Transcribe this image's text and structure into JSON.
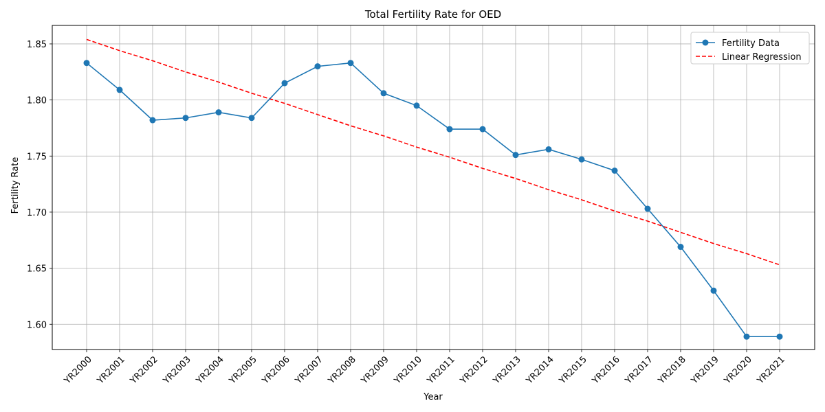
{
  "chart_data": {
    "type": "line",
    "title": "Total Fertility Rate for OED",
    "xlabel": "Year",
    "ylabel": "Fertility Rate",
    "categories": [
      "YR2000",
      "YR2001",
      "YR2002",
      "YR2003",
      "YR2004",
      "YR2005",
      "YR2006",
      "YR2007",
      "YR2008",
      "YR2009",
      "YR2010",
      "YR2011",
      "YR2012",
      "YR2013",
      "YR2014",
      "YR2015",
      "YR2016",
      "YR2017",
      "YR2018",
      "YR2019",
      "YR2020",
      "YR2021"
    ],
    "ylim": [
      1.5775,
      1.8665
    ],
    "yticks": [
      1.6,
      1.65,
      1.7,
      1.75,
      1.8,
      1.85
    ],
    "ytick_labels": [
      "1.60",
      "1.65",
      "1.70",
      "1.75",
      "1.80",
      "1.85"
    ],
    "grid": true,
    "legend_position": "top-right",
    "series": [
      {
        "name": "Fertility Data",
        "style": "solid line with circle markers",
        "color": "#1f77b4",
        "values": [
          1.833,
          1.809,
          1.782,
          1.784,
          1.789,
          1.784,
          1.815,
          1.83,
          1.833,
          1.806,
          1.795,
          1.774,
          1.774,
          1.751,
          1.756,
          1.747,
          1.737,
          1.703,
          1.669,
          1.63,
          1.589,
          1.589
        ]
      },
      {
        "name": "Linear Regression",
        "style": "dashed line",
        "color": "#ff0000",
        "values": [
          1.854,
          1.844,
          1.835,
          1.825,
          1.816,
          1.806,
          1.797,
          1.787,
          1.777,
          1.768,
          1.758,
          1.749,
          1.739,
          1.73,
          1.72,
          1.711,
          1.701,
          1.692,
          1.682,
          1.672,
          1.663,
          1.653
        ]
      }
    ]
  }
}
